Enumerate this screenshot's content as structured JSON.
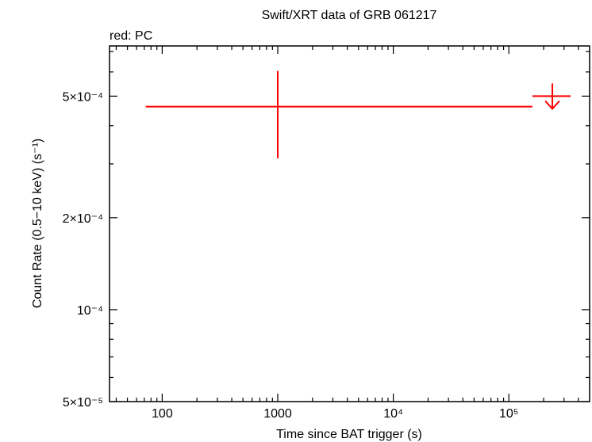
{
  "chart_data": {
    "type": "errorbar",
    "title": "Swift/XRT data of GRB 061217",
    "annotation": "red: PC",
    "xlabel": "Time since BAT trigger (s)",
    "ylabel": "Count Rate (0.5−10 keV) (s⁻¹)",
    "xscale": "log",
    "yscale": "log",
    "xlim": [
      35,
      500000
    ],
    "ylim": [
      5e-05,
      0.00073
    ],
    "xticks": [
      100,
      1000,
      {
        "value": 10000,
        "label": "10⁴"
      },
      {
        "value": 100000,
        "label": "10⁵"
      }
    ],
    "yticks": [
      {
        "value": 5e-05,
        "label": "5×10⁻⁵"
      },
      {
        "value": 0.0001,
        "label": "10⁻⁴"
      },
      {
        "value": 0.0002,
        "label": "2×10⁻⁴"
      },
      {
        "value": 0.0005,
        "label": "5×10⁻⁴"
      }
    ],
    "xminorticks": [
      40,
      50,
      60,
      70,
      80,
      90,
      200,
      300,
      400,
      500,
      600,
      700,
      800,
      900,
      2000,
      3000,
      4000,
      5000,
      6000,
      7000,
      8000,
      9000,
      20000,
      30000,
      40000,
      50000,
      60000,
      70000,
      80000,
      90000,
      200000,
      300000,
      400000
    ],
    "yminorticks": [
      6e-05,
      7e-05,
      8e-05,
      9e-05,
      0.0003,
      0.0004,
      0.0006,
      0.0007
    ],
    "color": "#ff0000",
    "points": [
      {
        "x": 1000,
        "x_low": 72,
        "x_high": 160000,
        "y": 0.000462,
        "y_low": 0.000313,
        "y_high": 0.000605
      }
    ],
    "upper_limits": [
      {
        "x": 238000,
        "x_low": 160000,
        "x_high": 342000,
        "y": 0.0005
      }
    ]
  }
}
